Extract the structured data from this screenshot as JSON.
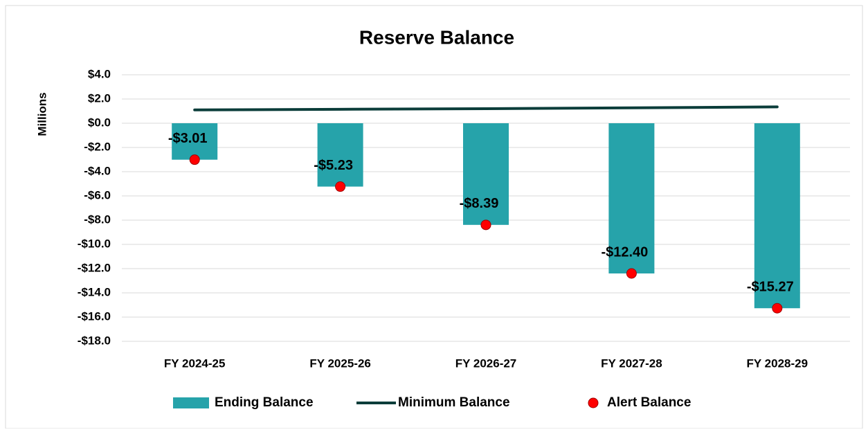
{
  "chart_data": {
    "type": "bar",
    "title": "Reserve Balance",
    "y_label": "Millions",
    "categories": [
      "FY 2024-25",
      "FY 2025-26",
      "FY 2026-27",
      "FY 2027-28",
      "FY 2028-29"
    ],
    "series": [
      {
        "name": "Ending Balance",
        "type": "bar",
        "color": "#26a3aa",
        "values": [
          -3.01,
          -5.23,
          -8.39,
          -12.4,
          -15.27
        ],
        "value_labels": [
          "-$3.01",
          "-$5.23",
          "-$8.39",
          "-$12.40",
          "-$15.27"
        ]
      },
      {
        "name": "Minimum Balance",
        "type": "line",
        "color": "#0b3d3a",
        "values": [
          1.1,
          1.15,
          1.2,
          1.27,
          1.35
        ]
      },
      {
        "name": "Alert Balance",
        "type": "scatter",
        "color": "#ff0000",
        "values": [
          -3.01,
          -5.23,
          -8.39,
          -12.4,
          -15.27
        ]
      }
    ],
    "ylim": [
      -18,
      4
    ],
    "yticks": [
      {
        "value": -18,
        "label": "-$18.0"
      },
      {
        "value": -16,
        "label": "-$16.0"
      },
      {
        "value": -14,
        "label": "-$14.0"
      },
      {
        "value": -12,
        "label": "-$12.0"
      },
      {
        "value": -10,
        "label": "-$10.0"
      },
      {
        "value": -8,
        "label": "-$8.0"
      },
      {
        "value": -6,
        "label": "-$6.0"
      },
      {
        "value": -4,
        "label": "-$4.0"
      },
      {
        "value": -2,
        "label": "-$2.0"
      },
      {
        "value": 0,
        "label": "$0.0"
      },
      {
        "value": 2,
        "label": "$2.0"
      },
      {
        "value": 4,
        "label": "$4.0"
      }
    ],
    "grid": true,
    "legend": "bottom"
  }
}
